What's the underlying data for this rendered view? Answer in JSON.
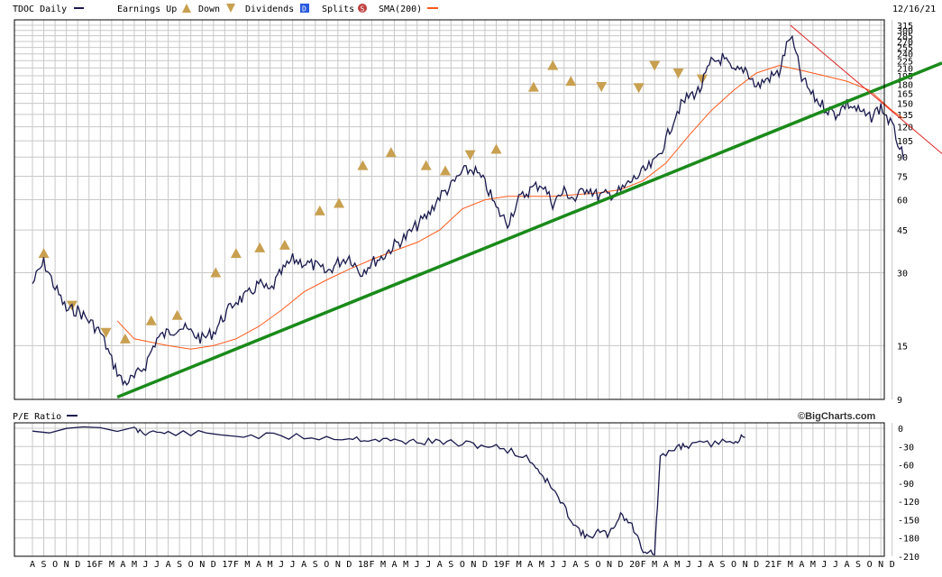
{
  "header": {
    "ticker_label": "TDOC Daily",
    "earnings_up_label": "Earnings Up",
    "down_label": "Down",
    "dividends_label": "Dividends",
    "splits_label": "Splits",
    "sma_label": "SMA(200)",
    "date": "12/16/21"
  },
  "legend_icons": {
    "earnings_up": "triangle-up-E-icon",
    "earnings_down": "triangle-down-E-icon",
    "dividends": "D",
    "splits": "S"
  },
  "colors": {
    "price": "#1a1a4e",
    "sma": "#ff5a1a",
    "trend_green": "#1a8a1a",
    "trend_red": "#e02020",
    "grid": "#c8c8c8",
    "earnings_marker": "#c8a050",
    "dividend": "#2a5adf",
    "split": "#c04040"
  },
  "bottom_panel": {
    "label": "P/E Ratio",
    "credit": "©BigCharts.com"
  },
  "chart_data": [
    {
      "type": "line",
      "scale": "log",
      "y_ticks": [
        "315",
        "300",
        "285",
        "270",
        "255",
        "240",
        "225",
        "210",
        "195",
        "180",
        "165",
        "150",
        "135",
        "120",
        "105",
        "90",
        "75",
        "60",
        "45",
        "30",
        "15",
        "9"
      ],
      "y_tick_values": [
        315,
        300,
        285,
        270,
        255,
        240,
        225,
        210,
        195,
        180,
        165,
        150,
        135,
        120,
        105,
        90,
        75,
        60,
        45,
        30,
        15,
        9
      ],
      "ylim": [
        9,
        315
      ],
      "x_ticks": [
        "A",
        "S",
        "O",
        "N",
        "D",
        "16",
        "F",
        "M",
        "A",
        "M",
        "J",
        "J",
        "A",
        "S",
        "O",
        "N",
        "D",
        "17",
        "F",
        "M",
        "A",
        "M",
        "J",
        "J",
        "A",
        "S",
        "O",
        "N",
        "D",
        "18",
        "F",
        "M",
        "A",
        "M",
        "J",
        "J",
        "A",
        "S",
        "O",
        "N",
        "D",
        "19",
        "F",
        "M",
        "A",
        "M",
        "J",
        "J",
        "A",
        "S",
        "O",
        "N",
        "D",
        "20",
        "F",
        "M",
        "A",
        "M",
        "J",
        "J",
        "A",
        "S",
        "O",
        "N",
        "D",
        "21",
        "F",
        "M",
        "A",
        "M",
        "J",
        "J",
        "A",
        "S",
        "O",
        "N",
        "D"
      ],
      "series": [
        {
          "name": "TDOC Daily",
          "points": [
            [
              0,
              27
            ],
            [
              1,
              33
            ],
            [
              2,
              26
            ],
            [
              3,
              21
            ],
            [
              4,
              21
            ],
            [
              5,
              19
            ],
            [
              6,
              17
            ],
            [
              7,
              13
            ],
            [
              8,
              10.5
            ],
            [
              9,
              11
            ],
            [
              10,
              12.5
            ],
            [
              11,
              16
            ],
            [
              12,
              17
            ],
            [
              13,
              18
            ],
            [
              14,
              17
            ],
            [
              15,
              16
            ],
            [
              16,
              17
            ],
            [
              17,
              20
            ],
            [
              18,
              23
            ],
            [
              19,
              24
            ],
            [
              20,
              27
            ],
            [
              21,
              25
            ],
            [
              22,
              30
            ],
            [
              23,
              34
            ],
            [
              24,
              33
            ],
            [
              25,
              32
            ],
            [
              26,
              30
            ],
            [
              27,
              33
            ],
            [
              28,
              35
            ],
            [
              29,
              30
            ],
            [
              30,
              33
            ],
            [
              31,
              35
            ],
            [
              32,
              39
            ],
            [
              33,
              42
            ],
            [
              34,
              47
            ],
            [
              35,
              52
            ],
            [
              36,
              62
            ],
            [
              37,
              68
            ],
            [
              38,
              78
            ],
            [
              39,
              80
            ],
            [
              40,
              70
            ],
            [
              41,
              55
            ],
            [
              42,
              48
            ],
            [
              43,
              60
            ],
            [
              44,
              66
            ],
            [
              45,
              70
            ],
            [
              46,
              58
            ],
            [
              47,
              65
            ],
            [
              48,
              60
            ],
            [
              49,
              68
            ],
            [
              50,
              62
            ],
            [
              51,
              63
            ],
            [
              52,
              65
            ],
            [
              53,
              72
            ],
            [
              54,
              78
            ],
            [
              55,
              85
            ],
            [
              56,
              105
            ],
            [
              57,
              140
            ],
            [
              58,
              160
            ],
            [
              59,
              170
            ],
            [
              60,
              220
            ],
            [
              61,
              230
            ],
            [
              62,
              200
            ],
            [
              63,
              210
            ],
            [
              64,
              175
            ],
            [
              65,
              190
            ],
            [
              66,
              200
            ],
            [
              67,
              285
            ],
            [
              68,
              190
            ],
            [
              69,
              160
            ],
            [
              70,
              145
            ],
            [
              71,
              135
            ],
            [
              72,
              150
            ],
            [
              73,
              140
            ],
            [
              74,
              130
            ],
            [
              75,
              145
            ],
            [
              76,
              120
            ],
            [
              77,
              88
            ]
          ]
        },
        {
          "name": "SMA(200)",
          "points": [
            [
              7.5,
              19
            ],
            [
              9,
              16
            ],
            [
              12,
              15
            ],
            [
              14,
              14.5
            ],
            [
              16,
              15
            ],
            [
              18,
              16
            ],
            [
              20,
              18
            ],
            [
              22,
              21
            ],
            [
              24,
              25
            ],
            [
              26,
              28
            ],
            [
              28,
              31
            ],
            [
              30,
              34
            ],
            [
              32,
              37
            ],
            [
              34,
              40
            ],
            [
              36,
              45
            ],
            [
              38,
              55
            ],
            [
              40,
              60
            ],
            [
              42,
              62
            ],
            [
              44,
              62
            ],
            [
              46,
              62
            ],
            [
              48,
              63
            ],
            [
              50,
              64
            ],
            [
              52,
              66
            ],
            [
              54,
              72
            ],
            [
              56,
              85
            ],
            [
              58,
              110
            ],
            [
              60,
              140
            ],
            [
              62,
              170
            ],
            [
              64,
              200
            ],
            [
              66,
              215
            ],
            [
              68,
              205
            ],
            [
              70,
              195
            ],
            [
              72,
              185
            ],
            [
              74,
              170
            ],
            [
              76,
              140
            ],
            [
              77,
              130
            ]
          ]
        }
      ],
      "trendlines": [
        {
          "color": "green",
          "from": [
            7.5,
            9.2
          ],
          "to": [
            81,
            220
          ]
        },
        {
          "color": "red",
          "from": [
            67,
            315
          ],
          "to": [
            81,
            93
          ]
        }
      ],
      "earnings_markers": [
        {
          "x": 1,
          "y": 36,
          "dir": "up"
        },
        {
          "x": 3.5,
          "y": 22,
          "dir": "down"
        },
        {
          "x": 6.5,
          "y": 17,
          "dir": "down"
        },
        {
          "x": 8.2,
          "y": 16,
          "dir": "up"
        },
        {
          "x": 10.5,
          "y": 19,
          "dir": "up"
        },
        {
          "x": 12.8,
          "y": 20,
          "dir": "up"
        },
        {
          "x": 16.2,
          "y": 30,
          "dir": "up"
        },
        {
          "x": 18,
          "y": 36,
          "dir": "up"
        },
        {
          "x": 20.1,
          "y": 38,
          "dir": "up"
        },
        {
          "x": 22.3,
          "y": 39,
          "dir": "up"
        },
        {
          "x": 25.4,
          "y": 54,
          "dir": "up"
        },
        {
          "x": 27.1,
          "y": 58,
          "dir": "up"
        },
        {
          "x": 29.2,
          "y": 83,
          "dir": "up"
        },
        {
          "x": 31.7,
          "y": 94,
          "dir": "up"
        },
        {
          "x": 34.8,
          "y": 83,
          "dir": "up"
        },
        {
          "x": 36.5,
          "y": 79,
          "dir": "up"
        },
        {
          "x": 38.7,
          "y": 92,
          "dir": "down"
        },
        {
          "x": 41,
          "y": 97,
          "dir": "up"
        },
        {
          "x": 44.3,
          "y": 175,
          "dir": "up"
        },
        {
          "x": 46,
          "y": 215,
          "dir": "up"
        },
        {
          "x": 47.6,
          "y": 185,
          "dir": "up"
        },
        {
          "x": 50.3,
          "y": 176,
          "dir": "down"
        },
        {
          "x": 53.6,
          "y": 174,
          "dir": "down"
        },
        {
          "x": 55,
          "y": 215,
          "dir": "down"
        },
        {
          "x": 57.1,
          "y": 200,
          "dir": "down"
        },
        {
          "x": 59.2,
          "y": 189,
          "dir": "down"
        }
      ]
    },
    {
      "type": "line",
      "title": "P/E Ratio",
      "y_ticks": [
        "0",
        "-30",
        "-60",
        "-90",
        "-120",
        "-150",
        "-180",
        "-210"
      ],
      "y_tick_values": [
        0,
        -30,
        -60,
        -90,
        -120,
        -150,
        -180,
        -210
      ],
      "ylim": [
        -210,
        0
      ],
      "series": [
        {
          "name": "P/E Ratio",
          "points": [
            [
              0,
              -3
            ],
            [
              9,
              -2
            ],
            [
              10,
              -6
            ],
            [
              12,
              -8
            ],
            [
              16,
              -10
            ],
            [
              20,
              -13
            ],
            [
              24,
              -14
            ],
            [
              28,
              -16
            ],
            [
              30,
              -18
            ],
            [
              32,
              -21
            ],
            [
              34,
              -22
            ],
            [
              36,
              -22
            ],
            [
              38,
              -26
            ],
            [
              40,
              -28
            ],
            [
              42,
              -35
            ],
            [
              44,
              -52
            ],
            [
              45,
              -75
            ],
            [
              46,
              -100
            ],
            [
              47,
              -130
            ],
            [
              48,
              -160
            ],
            [
              49,
              -180
            ],
            [
              50,
              -170
            ],
            [
              51,
              -175
            ],
            [
              52,
              -140
            ],
            [
              53,
              -160
            ],
            [
              54,
              -200
            ],
            [
              55,
              -205
            ],
            [
              55.5,
              -50
            ],
            [
              57,
              -30
            ],
            [
              58,
              -28
            ],
            [
              60,
              -25
            ],
            [
              62,
              -20
            ],
            [
              63,
              -15
            ]
          ]
        }
      ]
    }
  ]
}
